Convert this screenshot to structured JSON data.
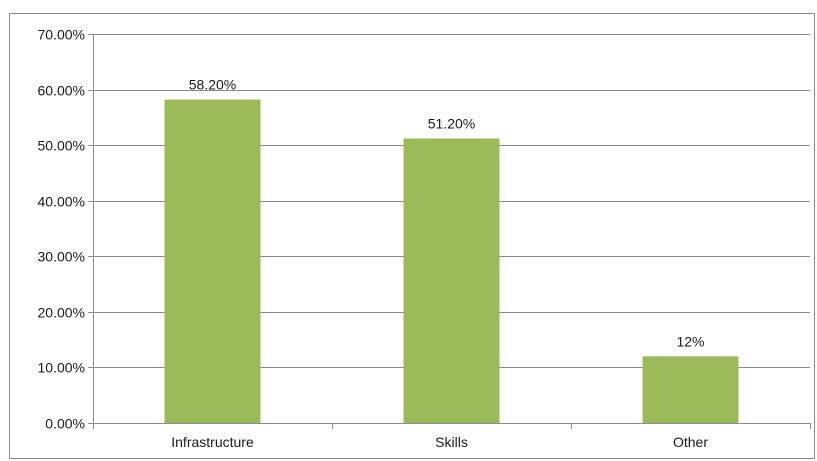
{
  "chart_data": {
    "type": "bar",
    "title": "",
    "xlabel": "",
    "ylabel": "",
    "categories": [
      "Infrastructure",
      "Skills",
      "Other"
    ],
    "values": [
      0.582,
      0.512,
      0.12
    ],
    "data_labels": [
      "58.20%",
      "51.20%",
      "12%"
    ],
    "ylim": [
      0,
      0.7
    ],
    "yticks": [
      0,
      0.1,
      0.2,
      0.3,
      0.4,
      0.5,
      0.6,
      0.7
    ],
    "ytick_labels": [
      "0.00%",
      "10.00%",
      "20.00%",
      "30.00%",
      "40.00%",
      "50.00%",
      "60.00%",
      "70.00%"
    ],
    "grid": true,
    "legend": "none",
    "bar_color": "#9bbb59",
    "grid_color": "#8c8c8c"
  }
}
